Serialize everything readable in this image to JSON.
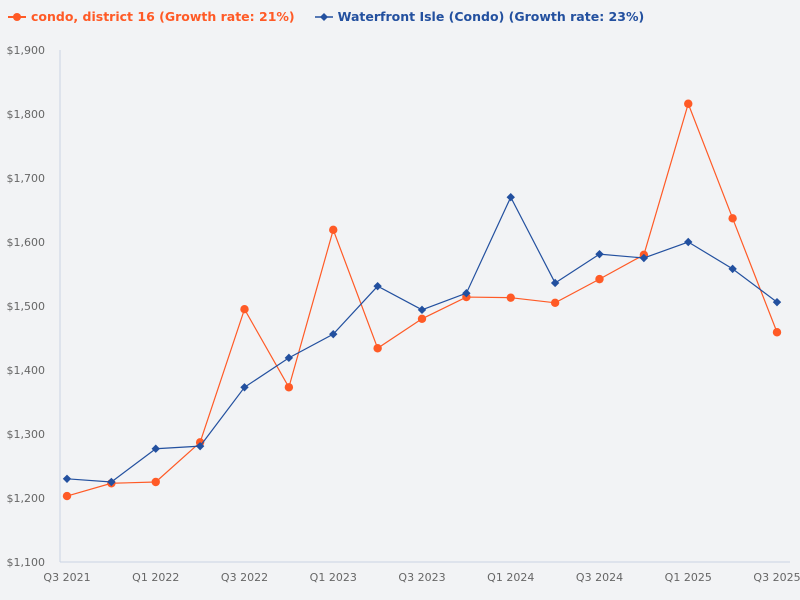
{
  "chart_data": {
    "type": "line",
    "title": "",
    "xlabel": "",
    "ylabel": "",
    "x": [
      "Q3 2021",
      "Q4 2021",
      "Q1 2022",
      "Q2 2022",
      "Q3 2022",
      "Q4 2022",
      "Q1 2023",
      "Q2 2023",
      "Q3 2023",
      "Q4 2023",
      "Q1 2024",
      "Q2 2024",
      "Q3 2024",
      "Q4 2024",
      "Q1 2025",
      "Q2 2025",
      "Q3 2025"
    ],
    "x_tick_labels": [
      "Q3 2021",
      "Q1 2022",
      "Q3 2022",
      "Q1 2023",
      "Q3 2023",
      "Q1 2024",
      "Q3 2024",
      "Q1 2025",
      "Q3 2025"
    ],
    "ylim": [
      1100,
      1900
    ],
    "y_ticks": [
      1100,
      1200,
      1300,
      1400,
      1500,
      1600,
      1700,
      1800,
      1900
    ],
    "y_tick_labels": [
      "$1,100",
      "$1,200",
      "$1,300",
      "$1,400",
      "$1,500",
      "$1,600",
      "$1,700",
      "$1,800",
      "$1,900"
    ],
    "grid": false,
    "legend_position": "top-left",
    "series": [
      {
        "name": "condo, district 16 (Growth rate: 21%)",
        "color": "#ff5a26",
        "marker": "circle",
        "values": [
          1203,
          1223,
          1225,
          1287,
          1495,
          1373,
          1619,
          1434,
          1480,
          1514,
          1513,
          1505,
          1542,
          1580,
          1816,
          1637,
          1459
        ]
      },
      {
        "name": "Waterfront Isle (Condo) (Growth rate: 23%)",
        "color": "#23509f",
        "marker": "diamond",
        "values": [
          1230,
          1225,
          1277,
          1281,
          1373,
          1419,
          1456,
          1531,
          1494,
          1520,
          1670,
          1536,
          1581,
          1575,
          1600,
          1558,
          1506
        ]
      }
    ]
  }
}
